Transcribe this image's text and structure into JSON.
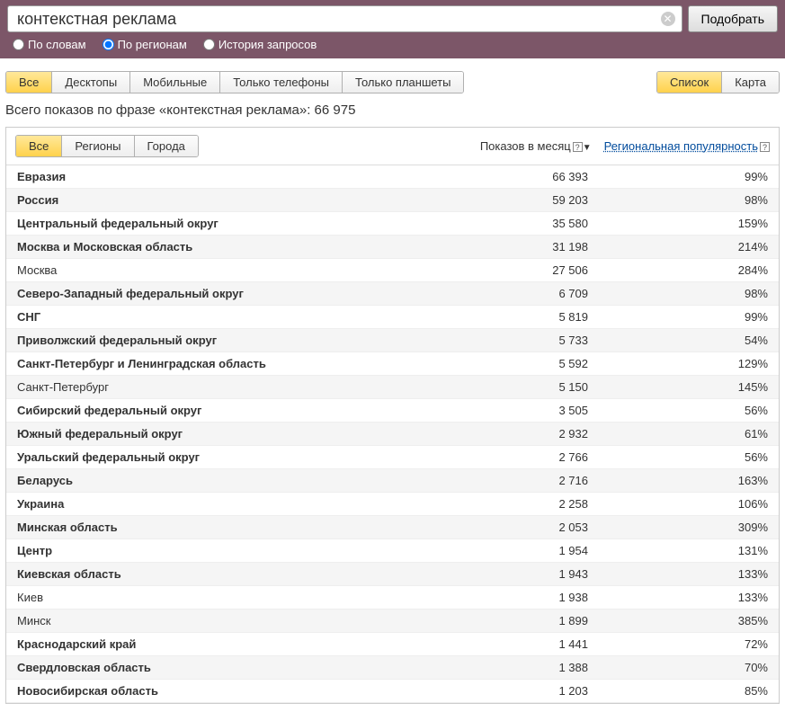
{
  "search": {
    "query": "контекстная реклама",
    "button": "Подобрать",
    "modes": [
      {
        "label": "По словам",
        "checked": false
      },
      {
        "label": "По регионам",
        "checked": true
      },
      {
        "label": "История запросов",
        "checked": false
      }
    ]
  },
  "device_tabs": [
    {
      "label": "Все",
      "active": true
    },
    {
      "label": "Десктопы",
      "active": false
    },
    {
      "label": "Мобильные",
      "active": false
    },
    {
      "label": "Только телефоны",
      "active": false
    },
    {
      "label": "Только планшеты",
      "active": false
    }
  ],
  "view_tabs": [
    {
      "label": "Список",
      "active": true
    },
    {
      "label": "Карта",
      "active": false
    }
  ],
  "summary": "Всего показов по фразе «контекстная реклама»: 66 975",
  "geo_tabs": [
    {
      "label": "Все",
      "active": true
    },
    {
      "label": "Регионы",
      "active": false
    },
    {
      "label": "Города",
      "active": false
    }
  ],
  "columns": {
    "shows": "Показов в месяц",
    "popularity": "Региональная популярность"
  },
  "rows": [
    {
      "name": "Евразия",
      "bold": true,
      "shows": "66 393",
      "pop": "99%"
    },
    {
      "name": "Россия",
      "bold": true,
      "shows": "59 203",
      "pop": "98%"
    },
    {
      "name": "Центральный федеральный округ",
      "bold": true,
      "shows": "35 580",
      "pop": "159%"
    },
    {
      "name": "Москва и Московская область",
      "bold": true,
      "shows": "31 198",
      "pop": "214%"
    },
    {
      "name": "Москва",
      "bold": false,
      "shows": "27 506",
      "pop": "284%"
    },
    {
      "name": "Северо-Западный федеральный округ",
      "bold": true,
      "shows": "6 709",
      "pop": "98%"
    },
    {
      "name": "СНГ",
      "bold": true,
      "shows": "5 819",
      "pop": "99%"
    },
    {
      "name": "Приволжский федеральный округ",
      "bold": true,
      "shows": "5 733",
      "pop": "54%"
    },
    {
      "name": "Санкт-Петербург и Ленинградская область",
      "bold": true,
      "shows": "5 592",
      "pop": "129%"
    },
    {
      "name": "Санкт-Петербург",
      "bold": false,
      "shows": "5 150",
      "pop": "145%"
    },
    {
      "name": "Сибирский федеральный округ",
      "bold": true,
      "shows": "3 505",
      "pop": "56%"
    },
    {
      "name": "Южный федеральный округ",
      "bold": true,
      "shows": "2 932",
      "pop": "61%"
    },
    {
      "name": "Уральский федеральный округ",
      "bold": true,
      "shows": "2 766",
      "pop": "56%"
    },
    {
      "name": "Беларусь",
      "bold": true,
      "shows": "2 716",
      "pop": "163%"
    },
    {
      "name": "Украина",
      "bold": true,
      "shows": "2 258",
      "pop": "106%"
    },
    {
      "name": "Минская область",
      "bold": true,
      "shows": "2 053",
      "pop": "309%"
    },
    {
      "name": "Центр",
      "bold": true,
      "shows": "1 954",
      "pop": "131%"
    },
    {
      "name": "Киевская область",
      "bold": true,
      "shows": "1 943",
      "pop": "133%"
    },
    {
      "name": "Киев",
      "bold": false,
      "shows": "1 938",
      "pop": "133%"
    },
    {
      "name": "Минск",
      "bold": false,
      "shows": "1 899",
      "pop": "385%"
    },
    {
      "name": "Краснодарский край",
      "bold": true,
      "shows": "1 441",
      "pop": "72%"
    },
    {
      "name": "Свердловская область",
      "bold": true,
      "shows": "1 388",
      "pop": "70%"
    },
    {
      "name": "Новосибирская область",
      "bold": true,
      "shows": "1 203",
      "pop": "85%"
    }
  ],
  "colors": {
    "header_bg": "#7c5668",
    "active_tab_start": "#ffe89a",
    "active_tab_end": "#ffd24c",
    "link": "#004b9c"
  }
}
